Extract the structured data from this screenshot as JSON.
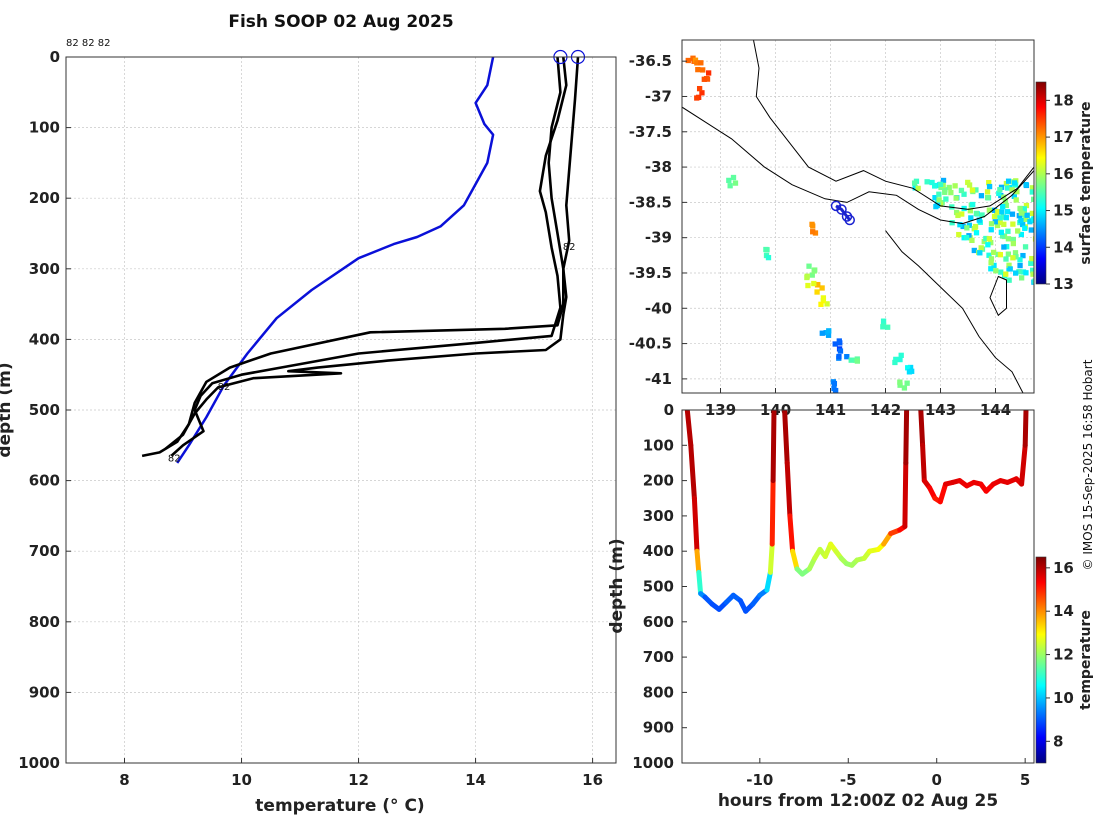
{
  "title": "Fish SOOP 02 Aug 2025",
  "cycle_labels": "82 82 82",
  "copyright": "© IMOS 15-Sep-2025 16:58 Hobart",
  "colors": {
    "profile_line": "#000000",
    "climatology_line": "#0a10d8",
    "track": "#1a22d0",
    "coast": "#000000"
  },
  "chart_data": [
    {
      "type": "line",
      "name": "profile",
      "xlabel": "temperature (° C)",
      "ylabel": "depth (m)",
      "xlim": [
        7,
        16.4
      ],
      "ylim": [
        0,
        1000
      ],
      "xticks": [
        8,
        10,
        12,
        14,
        16
      ],
      "yticks": [
        0,
        100,
        200,
        300,
        400,
        500,
        600,
        700,
        800,
        900,
        1000
      ],
      "grid": true,
      "series": [
        {
          "name": "climatology",
          "color": "#0a10d8",
          "points": [
            [
              14.3,
              0
            ],
            [
              14.2,
              40
            ],
            [
              14.0,
              65
            ],
            [
              14.15,
              95
            ],
            [
              14.3,
              110
            ],
            [
              14.2,
              150
            ],
            [
              14.0,
              180
            ],
            [
              13.8,
              210
            ],
            [
              13.4,
              240
            ],
            [
              13.0,
              255
            ],
            [
              12.6,
              265
            ],
            [
              12.0,
              285
            ],
            [
              11.2,
              330
            ],
            [
              10.6,
              370
            ],
            [
              10.1,
              420
            ],
            [
              9.7,
              465
            ],
            [
              9.4,
              510
            ],
            [
              9.1,
              550
            ],
            [
              8.9,
              575
            ]
          ]
        },
        {
          "name": "profile-1",
          "color": "#000000",
          "points": [
            [
              15.4,
              0
            ],
            [
              15.45,
              50
            ],
            [
              15.3,
              100
            ],
            [
              15.25,
              150
            ],
            [
              15.3,
              200
            ],
            [
              15.4,
              250
            ],
            [
              15.5,
              300
            ],
            [
              15.5,
              350
            ],
            [
              15.4,
              380
            ],
            [
              14.5,
              385
            ],
            [
              12.2,
              390
            ],
            [
              10.5,
              420
            ],
            [
              9.8,
              440
            ],
            [
              9.4,
              460
            ],
            [
              9.2,
              490
            ],
            [
              9.1,
              520
            ],
            [
              8.9,
              545
            ],
            [
              8.6,
              560
            ],
            [
              8.3,
              565
            ]
          ]
        },
        {
          "name": "profile-2",
          "color": "#000000",
          "points": [
            [
              15.5,
              0
            ],
            [
              15.55,
              40
            ],
            [
              15.4,
              90
            ],
            [
              15.2,
              140
            ],
            [
              15.1,
              190
            ],
            [
              15.2,
              220
            ],
            [
              15.3,
              270
            ],
            [
              15.4,
              310
            ],
            [
              15.45,
              355
            ],
            [
              15.3,
              395
            ],
            [
              14.0,
              405
            ],
            [
              12.0,
              420
            ],
            [
              11.0,
              435
            ],
            [
              10.0,
              450
            ],
            [
              9.5,
              462
            ],
            [
              9.3,
              480
            ],
            [
              9.2,
              500
            ],
            [
              9.35,
              530
            ],
            [
              9.0,
              550
            ],
            [
              8.8,
              565
            ]
          ]
        },
        {
          "name": "profile-3",
          "color": "#000000",
          "points": [
            [
              15.75,
              0
            ],
            [
              15.7,
              60
            ],
            [
              15.65,
              110
            ],
            [
              15.6,
              160
            ],
            [
              15.55,
              210
            ],
            [
              15.6,
              260
            ],
            [
              15.5,
              300
            ],
            [
              15.55,
              340
            ],
            [
              15.5,
              365
            ],
            [
              15.45,
              400
            ],
            [
              15.2,
              415
            ],
            [
              14.0,
              420
            ],
            [
              12.5,
              430
            ],
            [
              11.3,
              440
            ],
            [
              10.8,
              445
            ],
            [
              11.7,
              448
            ],
            [
              10.2,
              455
            ],
            [
              9.6,
              468
            ],
            [
              9.4,
              485
            ],
            [
              9.2,
              505
            ],
            [
              9.0,
              535
            ],
            [
              8.7,
              555
            ]
          ]
        }
      ],
      "annotations": [
        {
          "text": "82",
          "x": 15.6,
          "y": 268
        },
        {
          "text": "82",
          "x": 9.7,
          "y": 466
        },
        {
          "text": "82",
          "x": 8.85,
          "y": 567
        }
      ],
      "surface_markers": [
        15.45,
        15.75
      ]
    },
    {
      "type": "heatmap",
      "name": "map",
      "xlim": [
        138.3,
        144.7
      ],
      "ylim": [
        -41.2,
        -36.2
      ],
      "xticks": [
        139,
        140,
        141,
        142,
        143,
        144
      ],
      "yticks": [
        -36.5,
        -37,
        -37.5,
        -38,
        -38.5,
        -39,
        -39.5,
        -40,
        -40.5,
        -41
      ],
      "grid": true,
      "colorbar": {
        "label": "surface temperature",
        "min": 13,
        "max": 18.5,
        "ticks": [
          13,
          14,
          15,
          16,
          17,
          18
        ]
      },
      "track": [
        [
          141.1,
          -38.55
        ],
        [
          141.2,
          -38.6
        ],
        [
          141.3,
          -38.7
        ],
        [
          141.35,
          -38.75
        ]
      ]
    },
    {
      "type": "line",
      "name": "section",
      "xlabel": "hours from 12:00Z 02 Aug 25",
      "ylabel": "depth (m)",
      "xlim": [
        -14.4,
        5.5
      ],
      "ylim": [
        0,
        1000
      ],
      "xticks": [
        -10,
        -5,
        0,
        5
      ],
      "yticks": [
        0,
        100,
        200,
        300,
        400,
        500,
        600,
        700,
        800,
        900,
        1000
      ],
      "colorbar": {
        "label": "temperature",
        "min": 7,
        "max": 16.5,
        "ticks": [
          8,
          10,
          12,
          14,
          16
        ]
      },
      "series": [
        {
          "name": "dive-1",
          "points": [
            [
              -14.1,
              0,
              16
            ],
            [
              -13.9,
              100,
              16
            ],
            [
              -13.7,
              250,
              16
            ],
            [
              -13.55,
              400,
              15.5
            ],
            [
              -13.45,
              460,
              12
            ],
            [
              -13.35,
              520,
              10
            ],
            [
              -13.1,
              530,
              9
            ],
            [
              -12.7,
              550,
              9
            ],
            [
              -12.3,
              565,
              8.8
            ],
            [
              -11.9,
              545,
              9
            ],
            [
              -11.5,
              525,
              9.2
            ],
            [
              -11.1,
              540,
              9
            ],
            [
              -10.8,
              570,
              8.9
            ],
            [
              -10.4,
              550,
              9
            ],
            [
              -10.0,
              525,
              9.2
            ],
            [
              -9.6,
              510,
              9.5
            ],
            [
              -9.4,
              460,
              11
            ],
            [
              -9.3,
              380,
              14
            ],
            [
              -9.25,
              200,
              16
            ],
            [
              -9.2,
              0,
              16.2
            ]
          ]
        },
        {
          "name": "dive-2",
          "points": [
            [
              -8.6,
              0,
              16.2
            ],
            [
              -8.45,
              150,
              16
            ],
            [
              -8.3,
              300,
              15.8
            ],
            [
              -8.15,
              400,
              14.5
            ],
            [
              -7.9,
              450,
              12
            ],
            [
              -7.6,
              465,
              11.5
            ],
            [
              -7.2,
              450,
              12
            ],
            [
              -6.9,
              420,
              12.3
            ],
            [
              -6.6,
              395,
              12.5
            ],
            [
              -6.3,
              415,
              12.2
            ],
            [
              -6.0,
              380,
              12.8
            ],
            [
              -5.7,
              400,
              12.6
            ],
            [
              -5.4,
              420,
              12.3
            ],
            [
              -5.1,
              435,
              12
            ],
            [
              -4.8,
              440,
              12
            ],
            [
              -4.5,
              425,
              12.2
            ],
            [
              -4.1,
              420,
              12.3
            ],
            [
              -3.8,
              400,
              12.6
            ],
            [
              -3.3,
              395,
              12.8
            ],
            [
              -3.0,
              380,
              13
            ],
            [
              -2.6,
              350,
              14.5
            ],
            [
              -2.1,
              340,
              15
            ],
            [
              -1.8,
              330,
              15.5
            ],
            [
              -1.75,
              150,
              16
            ],
            [
              -1.7,
              0,
              16.3
            ]
          ]
        },
        {
          "name": "dive-3",
          "points": [
            [
              -0.9,
              0,
              16.2
            ],
            [
              -0.8,
              100,
              16
            ],
            [
              -0.7,
              200,
              15.8
            ],
            [
              -0.4,
              220,
              15.5
            ],
            [
              -0.1,
              250,
              15.2
            ],
            [
              0.2,
              260,
              15
            ],
            [
              0.5,
              210,
              15.5
            ],
            [
              0.9,
              205,
              15.6
            ],
            [
              1.3,
              200,
              15.6
            ],
            [
              1.7,
              215,
              15.4
            ],
            [
              2.1,
              205,
              15.5
            ],
            [
              2.5,
              210,
              15.5
            ],
            [
              2.8,
              230,
              15.3
            ],
            [
              3.2,
              210,
              15.4
            ],
            [
              3.6,
              200,
              15.6
            ],
            [
              4.0,
              205,
              15.5
            ],
            [
              4.5,
              195,
              15.6
            ],
            [
              4.8,
              210,
              15.5
            ],
            [
              5.0,
              100,
              16
            ],
            [
              5.05,
              0,
              16.2
            ]
          ]
        }
      ]
    }
  ]
}
